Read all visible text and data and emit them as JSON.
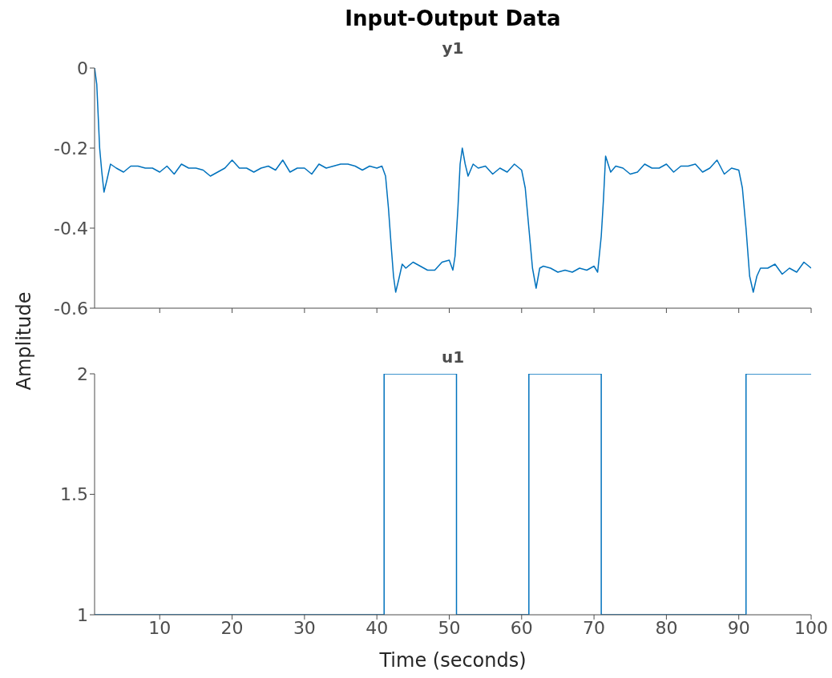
{
  "chart_data": [
    {
      "type": "line",
      "title": "Input-Output Data",
      "subtitle": "y1",
      "ylabel": "Amplitude",
      "xlim": [
        1,
        100
      ],
      "xticks": [
        10,
        20,
        30,
        40,
        50,
        60,
        70,
        80,
        90,
        100
      ],
      "ylim": [
        -0.6,
        0
      ],
      "yticks": [
        -0.6,
        -0.4,
        -0.2,
        0
      ],
      "tick_labels": "y",
      "grid": false,
      "legend": false,
      "series": [
        {
          "color": "#0072bd",
          "x": [
            1,
            1.3,
            1.7,
            2,
            2.3,
            2.7,
            3.2,
            4,
            5,
            6,
            7,
            8,
            9,
            10,
            11,
            12,
            13,
            14,
            15,
            16,
            17,
            18,
            19,
            20,
            21,
            22,
            23,
            24,
            25,
            26,
            27,
            28,
            29,
            30,
            31,
            32,
            33,
            34,
            35,
            36,
            37,
            38,
            39,
            40,
            40.7,
            41.2,
            41.6,
            42,
            42.3,
            42.6,
            43,
            43.5,
            44,
            45,
            46,
            47,
            48,
            49,
            50,
            50.5,
            50.8,
            51.2,
            51.5,
            51.8,
            52.2,
            52.6,
            53.3,
            54,
            55,
            56,
            57,
            58,
            59,
            60,
            60.5,
            61,
            61.5,
            62,
            62.5,
            63,
            64,
            65,
            66,
            67,
            68,
            69,
            70,
            70.5,
            71,
            71.3,
            71.6,
            72.3,
            73,
            74,
            75,
            76,
            77,
            78,
            79,
            80,
            81,
            82,
            83,
            84,
            85,
            86,
            87,
            88,
            89,
            90,
            90.5,
            91,
            91.5,
            92,
            92.5,
            93,
            94,
            95,
            96,
            97,
            98,
            99,
            100
          ],
          "values": [
            0,
            -0.04,
            -0.2,
            -0.26,
            -0.31,
            -0.28,
            -0.24,
            -0.25,
            -0.26,
            -0.245,
            -0.245,
            -0.25,
            -0.25,
            -0.26,
            -0.245,
            -0.265,
            -0.24,
            -0.25,
            -0.25,
            -0.255,
            -0.27,
            -0.26,
            -0.25,
            -0.23,
            -0.25,
            -0.25,
            -0.26,
            -0.25,
            -0.245,
            -0.255,
            -0.23,
            -0.26,
            -0.25,
            -0.25,
            -0.265,
            -0.24,
            -0.25,
            -0.245,
            -0.24,
            -0.24,
            -0.245,
            -0.255,
            -0.245,
            -0.25,
            -0.245,
            -0.27,
            -0.35,
            -0.45,
            -0.52,
            -0.56,
            -0.53,
            -0.49,
            -0.5,
            -0.485,
            -0.495,
            -0.505,
            -0.505,
            -0.485,
            -0.48,
            -0.505,
            -0.47,
            -0.35,
            -0.24,
            -0.2,
            -0.24,
            -0.27,
            -0.24,
            -0.25,
            -0.245,
            -0.265,
            -0.25,
            -0.26,
            -0.24,
            -0.255,
            -0.3,
            -0.4,
            -0.5,
            -0.55,
            -0.5,
            -0.495,
            -0.5,
            -0.51,
            -0.505,
            -0.51,
            -0.5,
            -0.505,
            -0.495,
            -0.51,
            -0.42,
            -0.33,
            -0.22,
            -0.26,
            -0.245,
            -0.25,
            -0.265,
            -0.26,
            -0.24,
            -0.25,
            -0.25,
            -0.24,
            -0.26,
            -0.245,
            -0.245,
            -0.24,
            -0.26,
            -0.25,
            -0.23,
            -0.265,
            -0.25,
            -0.255,
            -0.3,
            -0.4,
            -0.52,
            -0.56,
            -0.52,
            -0.5,
            -0.5,
            -0.49,
            -0.515,
            -0.5,
            -0.51,
            -0.485,
            -0.5
          ]
        }
      ]
    },
    {
      "type": "step",
      "title": "u1",
      "xlabel": "Time (seconds)",
      "xlim": [
        1,
        100
      ],
      "xticks": [
        10,
        20,
        30,
        40,
        50,
        60,
        70,
        80,
        90,
        100
      ],
      "ylim": [
        1,
        2
      ],
      "yticks": [
        1,
        1.5,
        2
      ],
      "grid": false,
      "legend": false,
      "series": [
        {
          "color": "#0072bd",
          "x": [
            1,
            41,
            51,
            61,
            71,
            91,
            100
          ],
          "values": [
            1,
            2,
            1,
            2,
            1,
            2,
            2
          ]
        }
      ]
    }
  ]
}
